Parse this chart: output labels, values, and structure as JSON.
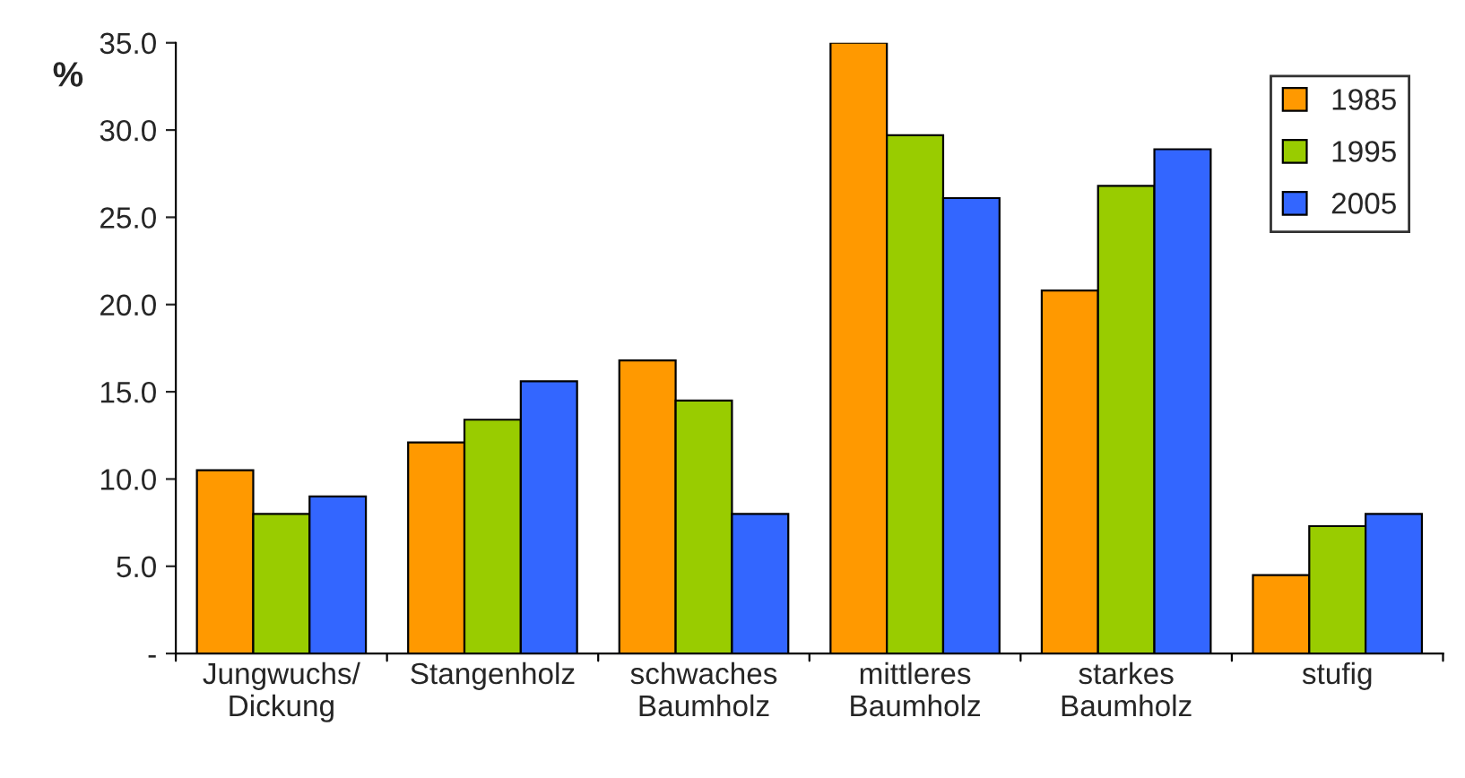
{
  "chart_data": {
    "type": "bar",
    "ylabel": "%",
    "categories": [
      "Jungwuchs/\nDickung",
      "Stangenholz",
      "schwaches\nBaumholz",
      "mittleres\nBaumholz",
      "starkes\nBaumholz",
      "stufig"
    ],
    "series": [
      {
        "name": "1985",
        "color": "#ff9900",
        "values": [
          10.5,
          12.1,
          16.8,
          35.0,
          20.8,
          4.5
        ]
      },
      {
        "name": "1995",
        "color": "#99cc00",
        "values": [
          8.0,
          13.4,
          14.5,
          29.7,
          26.8,
          7.3
        ]
      },
      {
        "name": "2005",
        "color": "#3366ff",
        "values": [
          9.0,
          15.6,
          8.0,
          26.1,
          28.9,
          8.0
        ]
      }
    ],
    "ylim": [
      0,
      35
    ],
    "yticks": [
      {
        "value": 0,
        "label": "-"
      },
      {
        "value": 5,
        "label": "5.0"
      },
      {
        "value": 10,
        "label": "10.0"
      },
      {
        "value": 15,
        "label": "15.0"
      },
      {
        "value": 20,
        "label": "20.0"
      },
      {
        "value": 25,
        "label": "25.0"
      },
      {
        "value": 30,
        "label": "30.0"
      },
      {
        "value": 35,
        "label": "35.0"
      }
    ],
    "legend": "top right",
    "grid": false
  }
}
